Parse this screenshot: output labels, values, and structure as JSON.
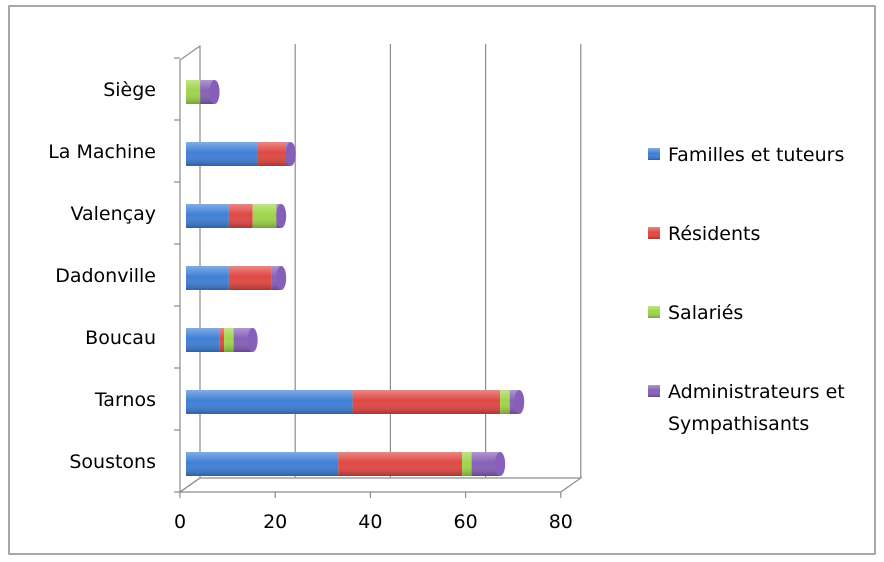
{
  "chart_data": {
    "type": "bar",
    "orientation": "horizontal",
    "stacked": true,
    "three_d": true,
    "categories": [
      "Soustons",
      "Tarnos",
      "Boucau",
      "Dadonville",
      "Valençay",
      "La Machine",
      "Siège"
    ],
    "series": [
      {
        "name": "Familles et tuteurs",
        "color": "#3f7fd6",
        "values": [
          32,
          35,
          7,
          9,
          9,
          15,
          0
        ]
      },
      {
        "name": "Résidents",
        "color": "#e04743",
        "values": [
          26,
          31,
          1,
          9,
          5,
          6,
          0
        ]
      },
      {
        "name": "Salariés",
        "color": "#9fd54a",
        "values": [
          2,
          2,
          2,
          0,
          5,
          0,
          3
        ]
      },
      {
        "name": "Administrateurs et Sympathisants",
        "color": "#8660b8",
        "values": [
          6,
          2,
          4,
          2,
          1,
          1,
          3
        ]
      }
    ],
    "xticks": [
      "0",
      "20",
      "40",
      "60",
      "80"
    ],
    "xlim": [
      0,
      80
    ],
    "grid": true,
    "legend_position": "right"
  }
}
